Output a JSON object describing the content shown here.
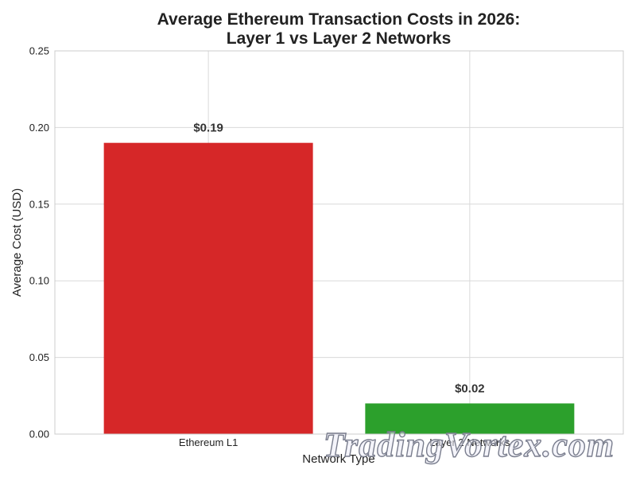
{
  "chart_data": {
    "type": "bar",
    "title_lines": [
      "Average Ethereum Transaction Costs in 2026:",
      "Layer 1 vs Layer 2 Networks"
    ],
    "xlabel": "Network Type",
    "ylabel": "Average Cost (USD)",
    "categories": [
      "Ethereum L1",
      "Layer 2 Networks"
    ],
    "values": [
      0.19,
      0.02
    ],
    "data_labels": [
      "$0.19",
      "$0.02"
    ],
    "colors": [
      "#d62728",
      "#2ca02c"
    ],
    "ylim": [
      0,
      0.25
    ],
    "yticks": [
      0.0,
      0.05,
      0.1,
      0.15,
      0.2,
      0.25
    ],
    "ytick_labels": [
      "0.00",
      "0.05",
      "0.10",
      "0.15",
      "0.20",
      "0.25"
    ],
    "grid": true,
    "legend": "none"
  },
  "watermark": {
    "text": "TradingVortex.com"
  }
}
